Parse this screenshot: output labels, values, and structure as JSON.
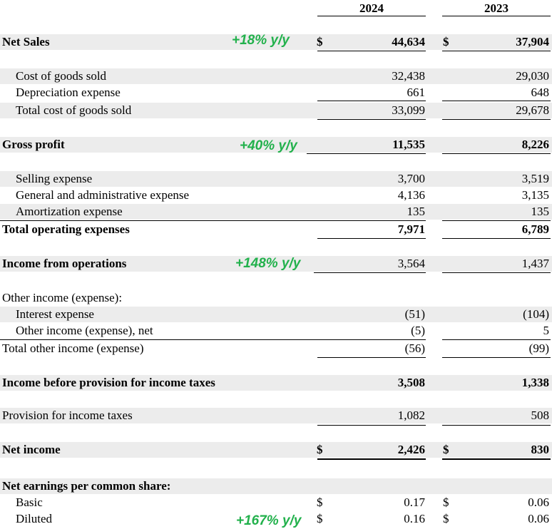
{
  "header": {
    "col_2024": "2024",
    "col_2023": "2023"
  },
  "currency": "$",
  "net_sales": {
    "label": "Net Sales",
    "yoy": "+18% y/y",
    "v2024": "44,634",
    "v2023": "37,904"
  },
  "cogs": [
    {
      "label": "Cost of goods sold",
      "v2024": "32,438",
      "v2023": "29,030"
    },
    {
      "label": "Depreciation expense",
      "v2024": "661",
      "v2023": "648"
    },
    {
      "label": "Total cost of goods sold",
      "v2024": "33,099",
      "v2023": "29,678"
    }
  ],
  "gross_profit": {
    "label": "Gross profit",
    "yoy": "+40% y/y",
    "v2024": "11,535",
    "v2023": "8,226"
  },
  "opex": [
    {
      "label": "Selling expense",
      "v2024": "3,700",
      "v2023": "3,519"
    },
    {
      "label": "General and administrative expense",
      "v2024": "4,136",
      "v2023": "3,135"
    },
    {
      "label": "Amortization expense",
      "v2024": "135",
      "v2023": "135"
    },
    {
      "label": "Total operating expenses",
      "v2024": "7,971",
      "v2023": "6,789"
    }
  ],
  "income_ops": {
    "label": "Income from operations",
    "yoy": "+148% y/y",
    "v2024": "3,564",
    "v2023": "1,437"
  },
  "other": {
    "heading": "Other income (expense):",
    "rows": [
      {
        "label": "Interest expense",
        "v2024": "(51)",
        "v2023": "(104)"
      },
      {
        "label": "Other income (expense), net",
        "v2024": "(5)",
        "v2023": "5"
      },
      {
        "label": "Total other income (expense)",
        "v2024": "(56)",
        "v2023": "(99)"
      }
    ]
  },
  "income_before_tax": {
    "label": "Income before provision for income taxes",
    "v2024": "3,508",
    "v2023": "1,338"
  },
  "provision": {
    "label": "Provision for income taxes",
    "v2024": "1,082",
    "v2023": "508"
  },
  "net_income": {
    "label": "Net income",
    "v2024": "2,426",
    "v2023": "830"
  },
  "eps": {
    "heading": "Net earnings per common share:",
    "basic": {
      "label": "Basic",
      "v2024": "0.17",
      "v2023": "0.06"
    },
    "diluted": {
      "label": "Diluted",
      "yoy": "+167% y/y",
      "v2024": "0.16",
      "v2023": "0.06"
    }
  },
  "colors": {
    "yoy_green": "#22b14c",
    "row_shade": "#ececec"
  }
}
